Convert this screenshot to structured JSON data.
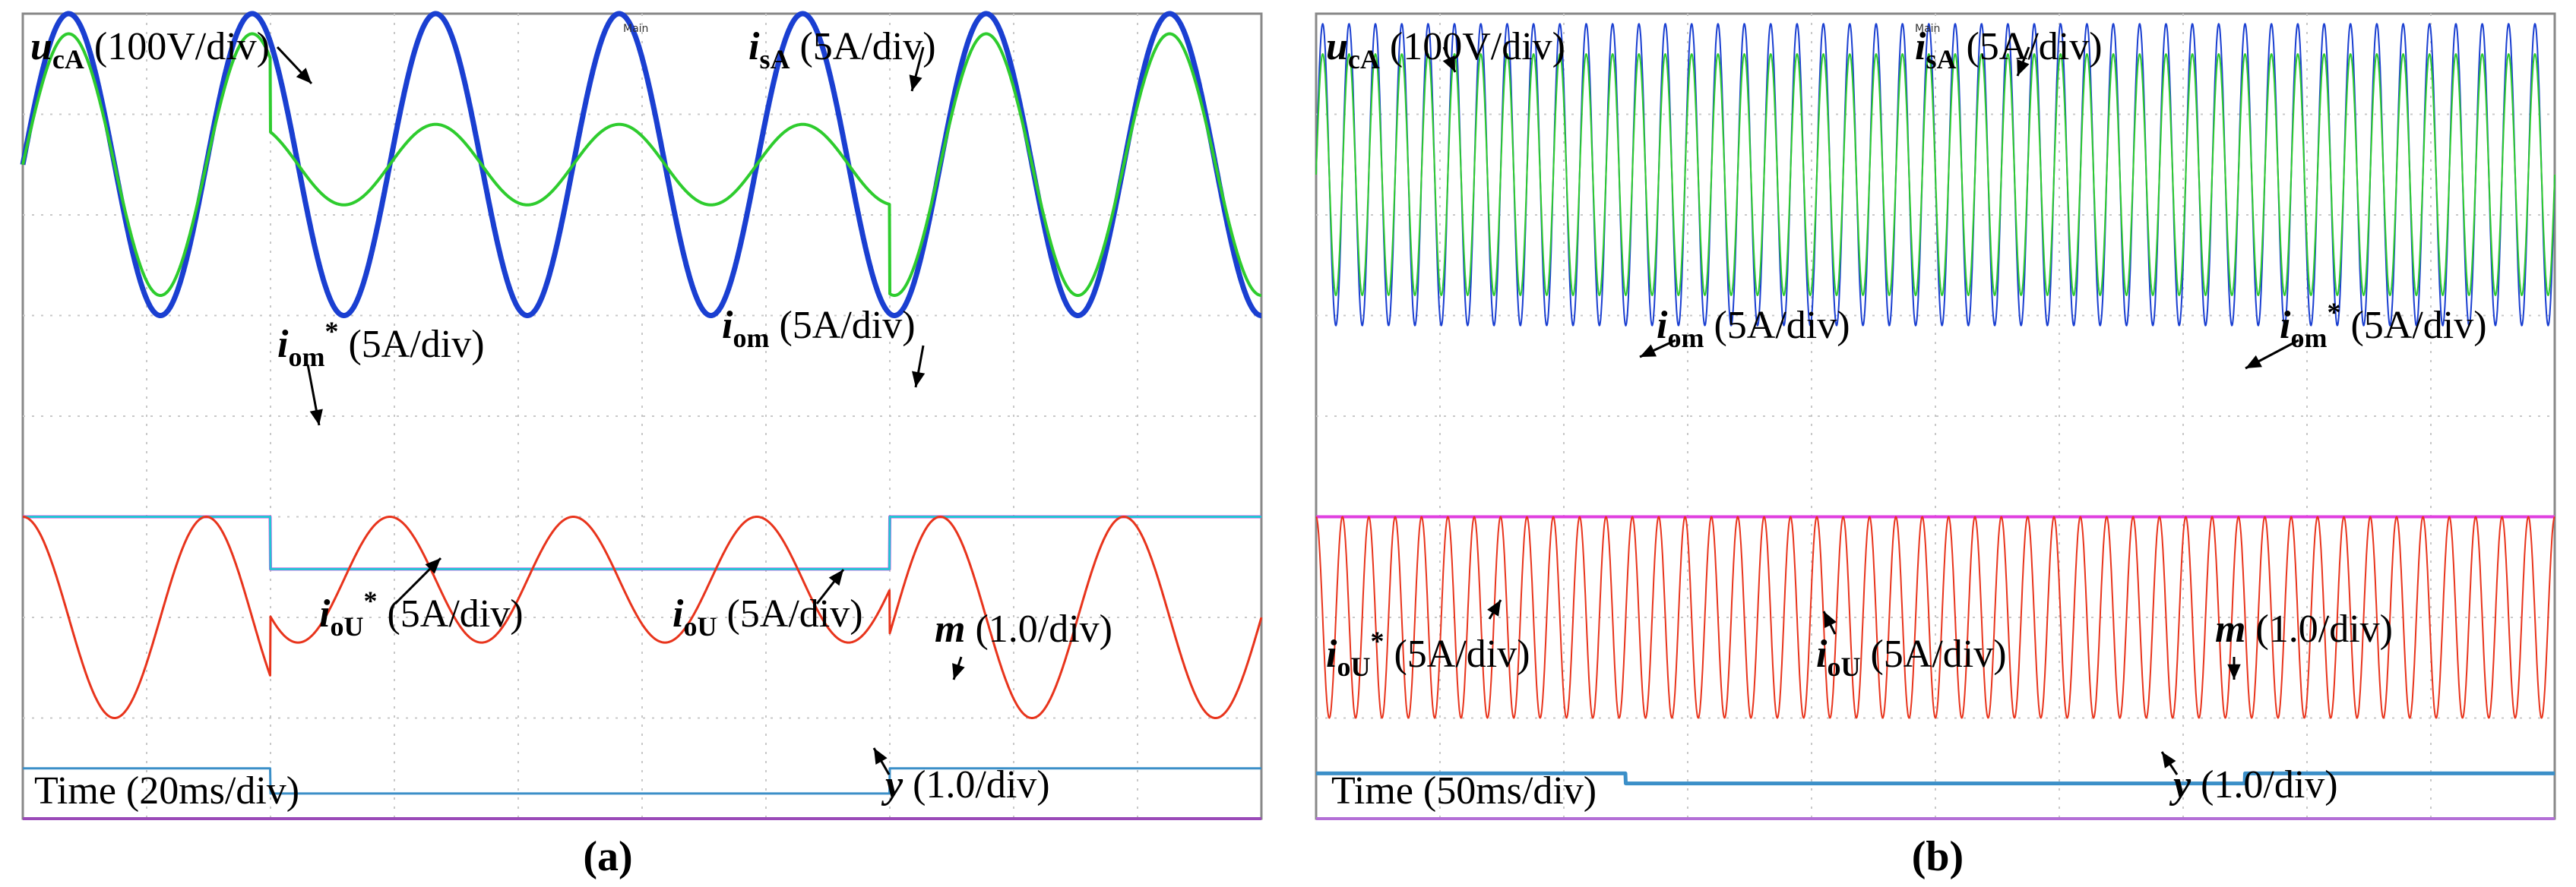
{
  "chart_data": [
    {
      "type": "line",
      "panel": "(a)",
      "caption": "(a)",
      "scope_label": "Main",
      "time_label": "Time (20ms/div)",
      "x_divisions": 10,
      "y_divisions": 8,
      "event_divisions": [
        2.0,
        7.0
      ],
      "series": [
        {
          "name": "ucA",
          "label_main": "u",
          "label_sub": "cA",
          "label_unit": " (100V/div)",
          "color": "#1a3fd1",
          "shape": "sine",
          "offset_div": 6.5,
          "amp_div": [
            1.5,
            1.5,
            1.5
          ],
          "cycles_per_div": 0.675,
          "stroke": 7
        },
        {
          "name": "isA",
          "label_main": "i",
          "label_sub": "sA",
          "label_unit": " (5A/div)",
          "color": "#2ecc2e",
          "shape": "sine",
          "offset_div": 6.5,
          "amp_div": [
            1.3,
            0.4,
            1.3
          ],
          "cycles_per_div": 0.675,
          "stroke": 4
        },
        {
          "name": "iom*",
          "label_main": "i",
          "label_sub": "om",
          "label_unit": " (5A/div)",
          "label_sup": "*",
          "color": "#e040e0",
          "shape": "step",
          "levels_div": [
            3.0,
            2.48,
            3.0
          ],
          "stroke": 4
        },
        {
          "name": "iom",
          "label_main": "i",
          "label_sub": "om",
          "label_unit": " (5A/div)",
          "color": "#22c4d4",
          "shape": "step",
          "levels_div": [
            3.0,
            2.48,
            3.0
          ],
          "stroke": 3
        },
        {
          "name": "ioU",
          "label_main": "i",
          "label_sub": "oU",
          "label_unit": " (5A/div)",
          "color": "#e8341c",
          "shape": "rect-sine",
          "top_div": 3.0,
          "bottoms_div": [
            1.0,
            1.75,
            1.0
          ],
          "cycles_per_div": 0.675,
          "stroke": 3
        },
        {
          "name": "m",
          "label_main": "m",
          "label_unit": " (1.0/div)",
          "color": "#3b8fc8",
          "shape": "step",
          "levels_div": [
            0.5,
            0.25,
            0.5
          ],
          "stroke": 3
        },
        {
          "name": "y",
          "label_main": "y",
          "label_unit": " (1.0/div)",
          "color": "#9a4ab8",
          "shape": "flat",
          "level_div": 0.0,
          "stroke": 4
        }
      ]
    },
    {
      "type": "line",
      "panel": "(b)",
      "caption": "(b)",
      "scope_label": "Main",
      "time_label": "Time (50ms/div)",
      "x_divisions": 10,
      "y_divisions": 8,
      "event_divisions": [
        2.5,
        7.5
      ],
      "series": [
        {
          "name": "ucA",
          "label_main": "u",
          "label_sub": "cA",
          "label_unit": " (100V/div)",
          "color": "#1a3fd1",
          "shape": "sine",
          "offset_div": 6.4,
          "amp_div": [
            1.5,
            1.5,
            1.5
          ],
          "cycles_per_div": 4.7,
          "stroke": 2
        },
        {
          "name": "isA",
          "label_main": "i",
          "label_sub": "sA",
          "label_unit": " (5A/div)",
          "color": "#2ecc2e",
          "shape": "sine",
          "offset_div": 6.4,
          "amp_div": [
            1.2,
            1.2,
            1.2
          ],
          "cycles_per_div": 4.7,
          "stroke": 2
        },
        {
          "name": "iom",
          "label_main": "i",
          "label_sub": "om",
          "label_unit": " (5A/div)",
          "color": "#22c4d4",
          "shape": "flat",
          "level_div": 3.0,
          "stroke": 3
        },
        {
          "name": "iom*",
          "label_main": "i",
          "label_sub": "om",
          "label_unit": " (5A/div)",
          "label_sup": "*",
          "color": "#e040e0",
          "shape": "flat",
          "level_div": 3.0,
          "stroke": 4
        },
        {
          "name": "ioU",
          "label_main": "i",
          "label_sub": "oU",
          "label_unit": " (5A/div)",
          "color": "#e8341c",
          "shape": "rect-sine",
          "top_div": 3.0,
          "bottoms_div": [
            1.0,
            1.0,
            1.0
          ],
          "cycles_per_div": 4.7,
          "stroke": 2
        },
        {
          "name": "ioU*",
          "label_main": "i",
          "label_sub": "oU",
          "label_unit": " (5A/div)",
          "label_sup": "*",
          "color": "#e8341c",
          "shape": "none"
        },
        {
          "name": "m",
          "label_main": "m",
          "label_unit": " (1.0/div)",
          "color": "#3b8fc8",
          "shape": "step",
          "levels_div": [
            0.45,
            0.35,
            0.45
          ],
          "stroke": 5
        },
        {
          "name": "y",
          "label_main": "y",
          "label_unit": " (1.0/div)",
          "color": "#b36fd6",
          "shape": "flat",
          "level_div": 0.0,
          "stroke": 4
        }
      ]
    }
  ]
}
